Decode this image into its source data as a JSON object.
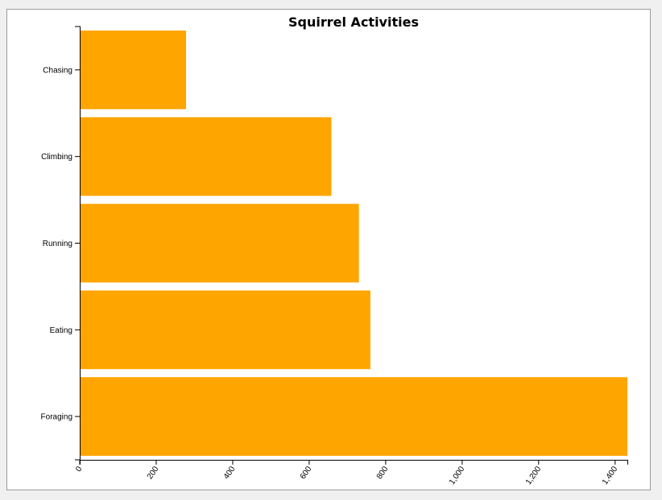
{
  "chart_data": {
    "type": "bar",
    "orientation": "horizontal",
    "title": "Squirrel Activities",
    "xlabel": "",
    "ylabel": "",
    "categories": [
      "Chasing",
      "Climbing",
      "Running",
      "Eating",
      "Foraging"
    ],
    "values": [
      278,
      658,
      730,
      760,
      1432
    ],
    "xlim": [
      0,
      1432
    ],
    "x_ticks": [
      0,
      200,
      400,
      600,
      800,
      1000,
      1200,
      1400
    ],
    "x_tick_labels": [
      "0",
      "200",
      "400",
      "600",
      "800",
      "1,000",
      "1,200",
      "1,400"
    ],
    "bar_color": "#ffa500",
    "grid": false,
    "legend": "none"
  }
}
